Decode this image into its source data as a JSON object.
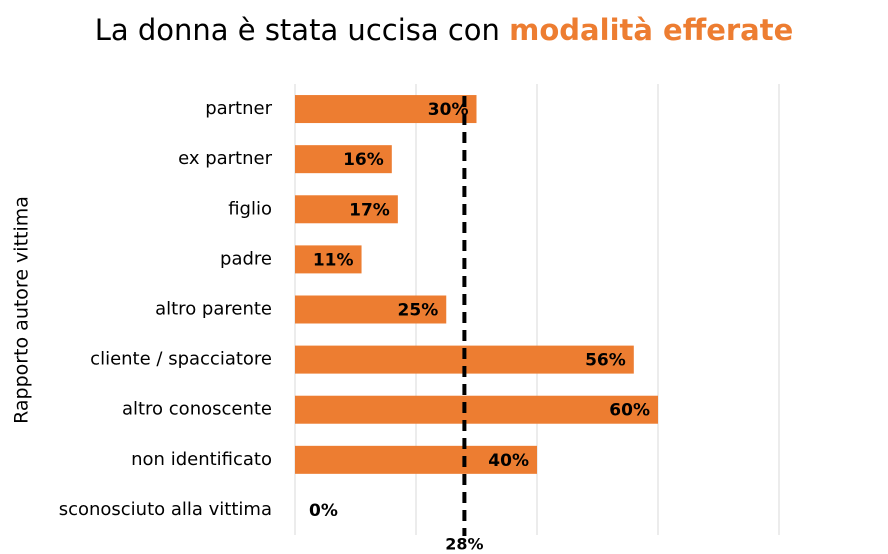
{
  "chart_data": {
    "type": "bar",
    "orientation": "horizontal",
    "title": "La donna è stata uccisa con",
    "title_highlight": "modalità efferate",
    "y_label": "Rapporto autore vittima",
    "categories": [
      "partner",
      "ex partner",
      "figlio",
      "padre",
      "altro parente",
      "cliente / spacciatore",
      "altro conoscente",
      "non identificato",
      "sconosciuto alla vittima"
    ],
    "values": [
      30,
      16,
      17,
      11,
      25,
      56,
      60,
      40,
      0
    ],
    "value_labels": [
      "30%",
      "16%",
      "17%",
      "11%",
      "25%",
      "56%",
      "60%",
      "40%",
      "0%"
    ],
    "color": "#ed7d31",
    "xlim": [
      0,
      80
    ],
    "xticks": [
      0,
      20,
      40,
      60,
      80
    ],
    "grid": true,
    "reference_line": {
      "value": 28,
      "label": "28%"
    }
  }
}
